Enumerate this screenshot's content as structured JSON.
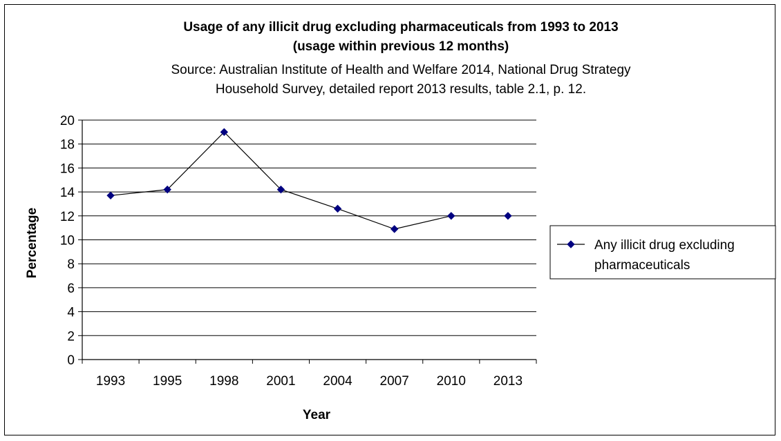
{
  "chart_data": {
    "type": "line",
    "title_lines": [
      "Usage of any illicit drug excluding pharmaceuticals from 1993 to 2013",
      "(usage within previous 12 months)"
    ],
    "source_lines": [
      "Source: Australian Institute of Health and Welfare 2014, National Drug Strategy",
      "Household Survey, detailed report 2013 results, table 2.1, p. 12."
    ],
    "xlabel": "Year",
    "ylabel": "Percentage",
    "categories": [
      "1993",
      "1995",
      "1998",
      "2001",
      "2004",
      "2007",
      "2010",
      "2013"
    ],
    "series": [
      {
        "name_lines": [
          "Any illicit drug excluding",
          "pharmaceuticals"
        ],
        "values": [
          13.7,
          14.2,
          19.0,
          14.2,
          12.6,
          10.9,
          12.0,
          12.0
        ],
        "color": "#000080"
      }
    ],
    "ylim": [
      0,
      20
    ],
    "yticks": [
      0,
      2,
      4,
      6,
      8,
      10,
      12,
      14,
      16,
      18,
      20
    ],
    "grid": true,
    "legend_position": "right"
  }
}
